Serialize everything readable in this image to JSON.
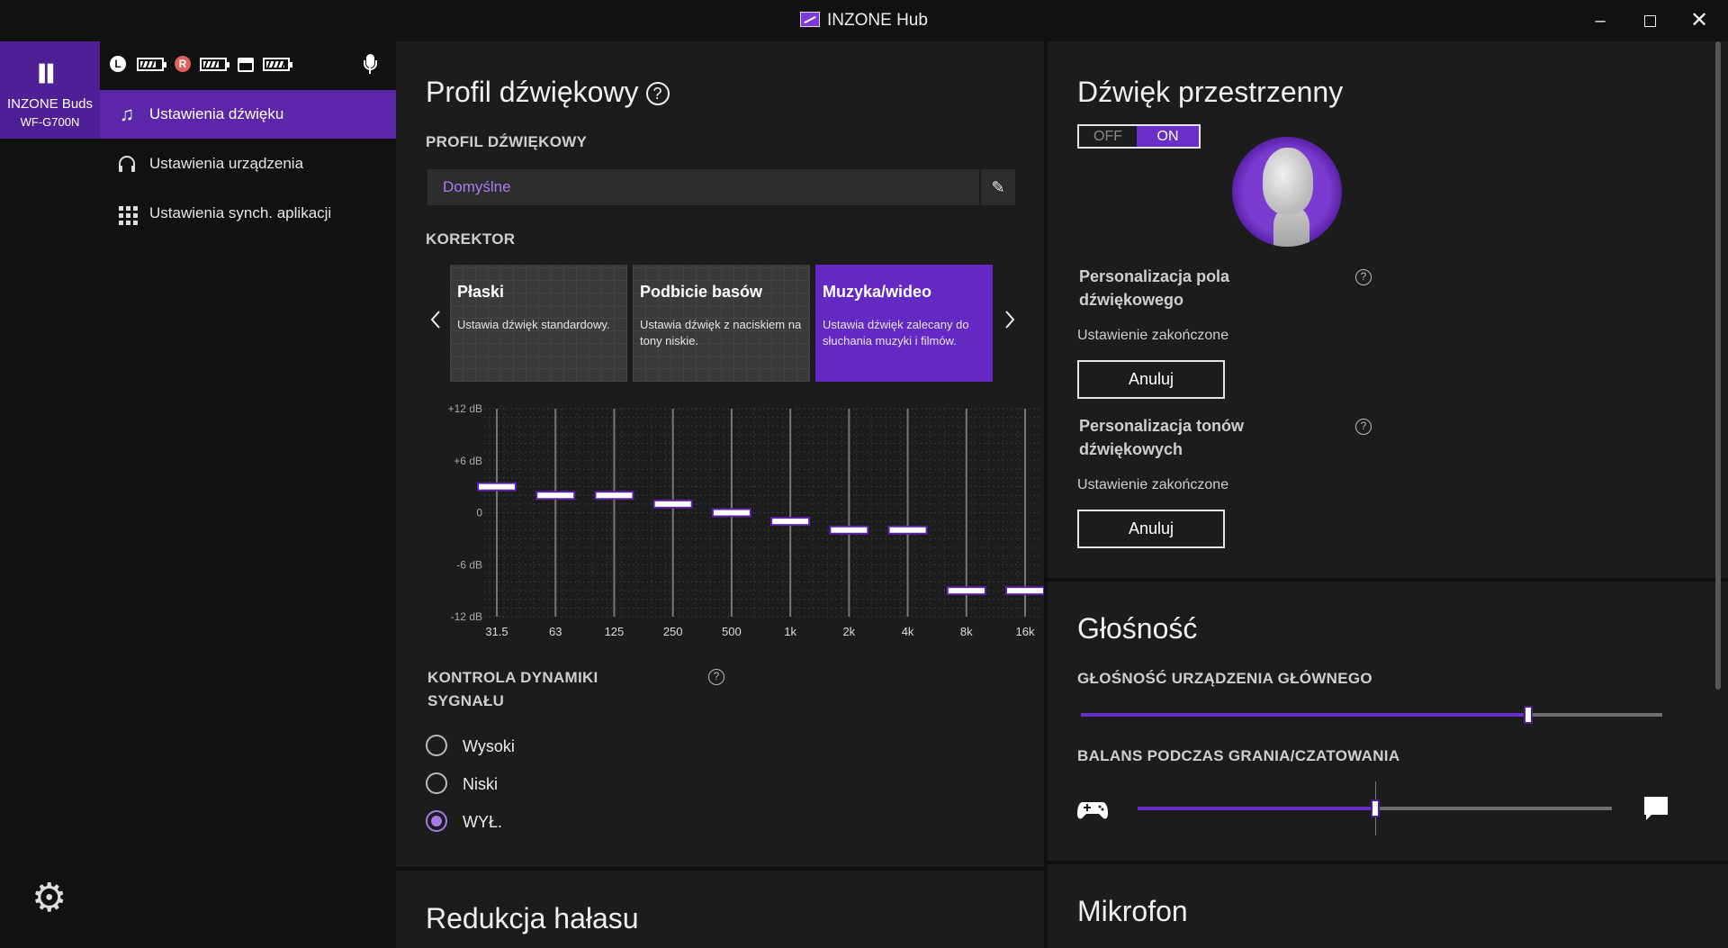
{
  "window": {
    "title": "INZONE Hub",
    "minimize": "–",
    "close": "✕"
  },
  "sidebar": {
    "device_name": "INZONE Buds",
    "device_model": "WF-G700N",
    "status": {
      "left_label": "L",
      "right_label": "R",
      "left_battery_level": 0.75,
      "right_battery_level": 0.75,
      "case_battery_level": 0.9
    },
    "items": [
      {
        "label": "Ustawienia dźwięku",
        "icon": "music-note-icon",
        "active": true
      },
      {
        "label": "Ustawienia urządzenia",
        "icon": "headphones-icon",
        "active": false
      },
      {
        "label": "Ustawienia synch. aplikacji",
        "icon": "apps-grid-icon",
        "active": false
      }
    ]
  },
  "sound_profile": {
    "title": "Profil dźwiękowy",
    "help": "?",
    "profile_label": "PROFIL DŹWIĘKOWY",
    "profile_value": "Domyślne",
    "equalizer_label": "KOREKTOR",
    "presets": [
      {
        "title": "Płaski",
        "desc": "Ustawia dźwięk standardowy.",
        "active": false
      },
      {
        "title": "Podbicie basów",
        "desc": "Ustawia dźwięk z naciskiem na tony niskie.",
        "active": false
      },
      {
        "title": "Muzyka/wideo",
        "desc": "Ustawia dźwięk zalecany do słuchania muzyki i filmów.",
        "active": true
      }
    ],
    "eq": {
      "db_labels": [
        "+12 dB",
        "+6 dB",
        "0",
        "-6 dB",
        "-12 dB"
      ],
      "db_range": [
        -12,
        12
      ],
      "bands": [
        "31.5",
        "63",
        "125",
        "250",
        "500",
        "1k",
        "2k",
        "4k",
        "8k",
        "16k"
      ],
      "values": [
        3,
        2,
        2,
        1,
        0,
        -1,
        -2,
        -2,
        -9,
        -9
      ]
    },
    "dynamics_label": "KONTROLA DYNAMIKI SYGNAŁU",
    "dynamics_options": [
      {
        "label": "Wysoki",
        "checked": false
      },
      {
        "label": "Niski",
        "checked": false
      },
      {
        "label": "WYŁ.",
        "checked": true
      }
    ]
  },
  "noise": {
    "title": "Redukcja hałasu"
  },
  "spatial": {
    "title": "Dźwięk przestrzenny",
    "toggle_off": "OFF",
    "toggle_on": "ON",
    "field_title": "Personalizacja pola dźwiękowego",
    "field_status": "Ustawienie zakończone",
    "field_button": "Anuluj",
    "tone_title": "Personalizacja tonów dźwiękowych",
    "tone_status": "Ustawienie zakończone",
    "tone_button": "Anuluj"
  },
  "volume": {
    "title": "Głośność",
    "master_label": "GŁOŚNOŚĆ URZĄDZENIA GŁÓWNEGO",
    "master_value": 0.77,
    "balance_label": "BALANS PODCZAS GRANIA/CZATOWANIA",
    "balance_value": 0.5
  },
  "mic": {
    "title": "Mikrofon"
  },
  "colors": {
    "accent": "#6a2fc9",
    "accent_text": "#a97cf0",
    "background": "#1c1c1c",
    "sidebar": "#111111"
  }
}
